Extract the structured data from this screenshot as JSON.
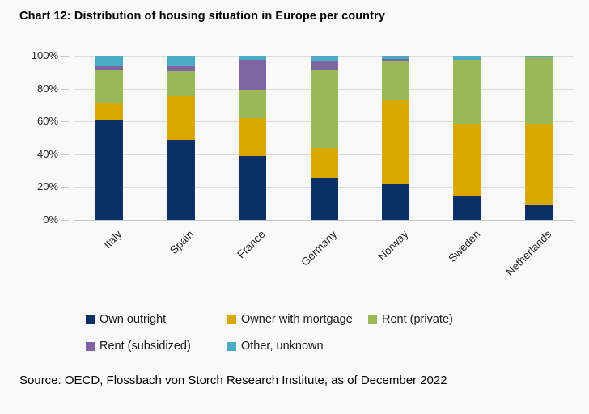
{
  "title": "Chart 12: Distribution of housing situation in Europe per country",
  "source": "Source: OECD, Flossbach von Storch Research Institute, as of December 2022",
  "colors": {
    "background": "#f9f9f9",
    "gridline": "#dcdcdc",
    "axis_line": "#c6c6c6",
    "text": "#1a1a1a"
  },
  "chart_data": {
    "type": "bar",
    "stacked": true,
    "unit": "%",
    "title": "Chart 12: Distribution of housing situation in Europe per country",
    "categories": [
      "Italy",
      "Spain",
      "France",
      "Germany",
      "Norway",
      "Sweden",
      "Netherlands"
    ],
    "series": [
      {
        "name": "Own outright",
        "color": "#0a3066",
        "values": [
          61,
          49,
          39,
          25.5,
          22,
          15,
          9
        ]
      },
      {
        "name": "Owner with mortgage",
        "color": "#d9a800",
        "values": [
          10.5,
          26.5,
          23,
          18.5,
          51,
          43.5,
          49.5
        ]
      },
      {
        "name": "Rent (private)",
        "color": "#99b857",
        "values": [
          20,
          15,
          17.5,
          47,
          23.5,
          39,
          40.5
        ]
      },
      {
        "name": "Rent (subsidized)",
        "color": "#8065a3",
        "values": [
          2,
          3,
          18,
          6,
          1.5,
          0,
          0
        ]
      },
      {
        "name": "Other, unknown",
        "color": "#4aacc5",
        "values": [
          6.5,
          6.5,
          2.5,
          3,
          2,
          2.5,
          1
        ]
      }
    ],
    "ylim": [
      0,
      100
    ],
    "yticks": [
      "0%",
      "20%",
      "40%",
      "60%",
      "80%",
      "100%"
    ],
    "ytick_values": [
      0,
      20,
      40,
      60,
      80,
      100
    ],
    "grid": "horizontal",
    "legend_position": "bottom"
  }
}
